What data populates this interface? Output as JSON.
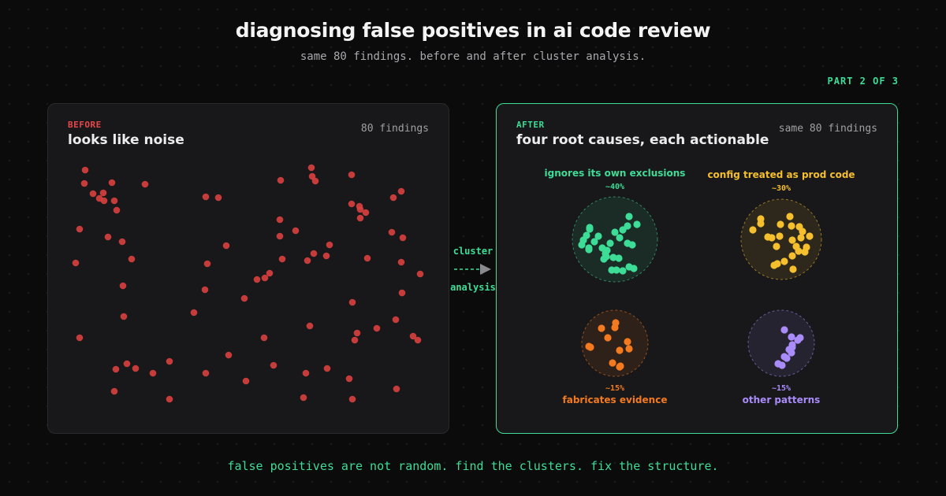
{
  "title": "diagnosing false positives in ai code review",
  "subtitle": "same 80 findings. before and after cluster analysis.",
  "part": "PART 2 OF 3",
  "before": {
    "tag": "BEFORE",
    "heading": "looks like noise",
    "count": "80 findings",
    "dot_color": "#d9403f"
  },
  "connector": {
    "top_label": "cluster",
    "bottom_label": "analysis"
  },
  "after": {
    "tag": "AFTER",
    "heading": "four root causes, each actionable",
    "count": "same 80 findings",
    "clusters": [
      {
        "name": "ignores its own exclusions",
        "share": "~40%",
        "color": "#3ddc97",
        "label_position": "above"
      },
      {
        "name": "config treated as prod code",
        "share": "~30%",
        "color": "#f5bf2e",
        "label_position": "above"
      },
      {
        "name": "fabricates evidence",
        "share": "~15%",
        "color": "#f37a1f",
        "label_position": "below"
      },
      {
        "name": "other patterns",
        "share": "~15%",
        "color": "#a98bfa",
        "label_position": "below"
      }
    ]
  },
  "footer": "false positives are not random. find the clusters. fix the structure.",
  "colors": {
    "accent": "#3ddc97",
    "before_accent": "#e8474a",
    "background": "#0b0b0c",
    "panel": "#18181a"
  }
}
